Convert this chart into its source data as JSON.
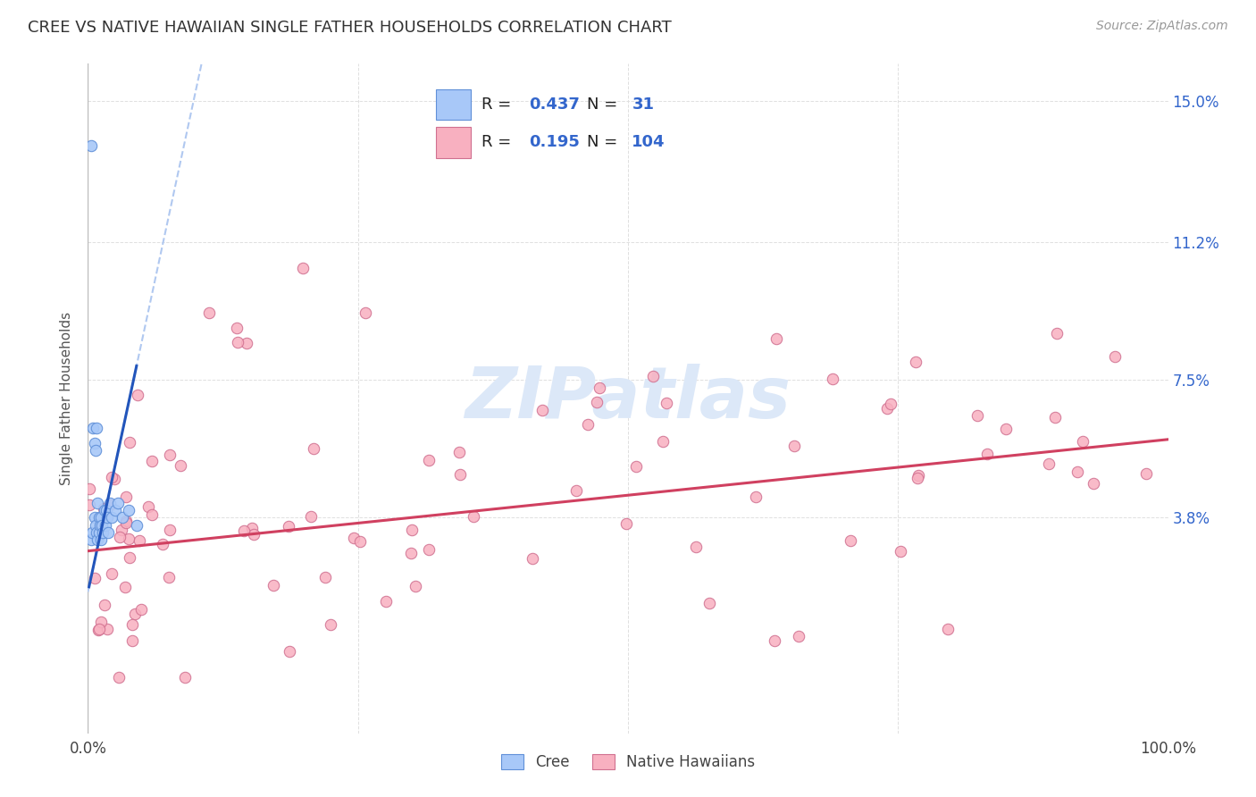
{
  "title": "CREE VS NATIVE HAWAIIAN SINGLE FATHER HOUSEHOLDS CORRELATION CHART",
  "source": "Source: ZipAtlas.com",
  "ylabel": "Single Father Households",
  "xlim": [
    0,
    1.0
  ],
  "ylim": [
    -0.02,
    0.16
  ],
  "ytick_positions": [
    0.038,
    0.075,
    0.112,
    0.15
  ],
  "ytick_labels": [
    "3.8%",
    "7.5%",
    "11.2%",
    "15.0%"
  ],
  "background_color": "#ffffff",
  "grid_color": "#e0e0e0",
  "cree_color": "#a8c8f8",
  "cree_edge_color": "#6090d8",
  "nh_color": "#f8b0c0",
  "nh_edge_color": "#d07090",
  "cree_line_color": "#2255bb",
  "nh_line_color": "#d04060",
  "cree_dash_color": "#b0c8f0",
  "legend_text_color": "#3366cc",
  "legend_N_color": "#3366cc",
  "cree_R": "0.437",
  "cree_N": "31",
  "nh_R": "0.195",
  "nh_N": "104",
  "watermark": "ZIPatlas",
  "watermark_color": "#dce8f8"
}
